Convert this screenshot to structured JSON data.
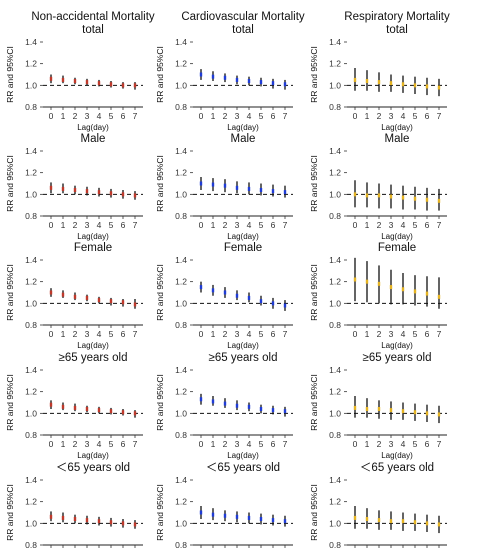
{
  "figure": {
    "ylabel": "RR and 95%CI",
    "xlabel": "Lag(day)",
    "ylim": [
      0.8,
      1.4
    ],
    "yticks": [
      "0.8",
      "1.0",
      "1.2",
      "1.4"
    ],
    "xticks": [
      "0",
      "1",
      "2",
      "3",
      "4",
      "5",
      "6",
      "7"
    ],
    "reference_value": 1.0
  },
  "chart_data": [
    {
      "type": "errorbar",
      "title": "Non-accidental Mortality\ntotal",
      "color": "#c0392b",
      "x": [
        0,
        1,
        2,
        3,
        4,
        5,
        6,
        7
      ],
      "rr": [
        1.06,
        1.05,
        1.04,
        1.03,
        1.02,
        1.01,
        1.0,
        1.0
      ],
      "lower": [
        1.02,
        1.02,
        1.01,
        1.0,
        0.99,
        0.98,
        0.97,
        0.96
      ],
      "upper": [
        1.1,
        1.09,
        1.07,
        1.06,
        1.05,
        1.04,
        1.03,
        1.03
      ]
    },
    {
      "type": "errorbar",
      "title": "Cardiovascular Mortality\ntotal",
      "color": "#1f3cd6",
      "x": [
        0,
        1,
        2,
        3,
        4,
        5,
        6,
        7
      ],
      "rr": [
        1.1,
        1.08,
        1.07,
        1.05,
        1.04,
        1.03,
        1.02,
        1.01
      ],
      "lower": [
        1.05,
        1.04,
        1.03,
        1.01,
        1.0,
        0.99,
        0.97,
        0.96
      ],
      "upper": [
        1.15,
        1.13,
        1.11,
        1.09,
        1.08,
        1.07,
        1.06,
        1.05
      ]
    },
    {
      "type": "errorbar",
      "title": "Respiratory Mortality\ntotal",
      "color": "#e6b422",
      "x": [
        0,
        1,
        2,
        3,
        4,
        5,
        6,
        7
      ],
      "rr": [
        1.05,
        1.04,
        1.03,
        1.02,
        1.01,
        1.0,
        0.99,
        0.98
      ],
      "lower": [
        0.95,
        0.95,
        0.94,
        0.94,
        0.93,
        0.92,
        0.91,
        0.9
      ],
      "upper": [
        1.16,
        1.14,
        1.12,
        1.1,
        1.09,
        1.08,
        1.07,
        1.06
      ]
    },
    {
      "type": "errorbar",
      "title": "Male",
      "color": "#c0392b",
      "x": [
        0,
        1,
        2,
        3,
        4,
        5,
        6,
        7
      ],
      "rr": [
        1.06,
        1.05,
        1.04,
        1.03,
        1.02,
        1.01,
        1.0,
        0.99
      ],
      "lower": [
        1.01,
        1.01,
        1.0,
        0.99,
        0.98,
        0.97,
        0.96,
        0.95
      ],
      "upper": [
        1.11,
        1.1,
        1.08,
        1.07,
        1.06,
        1.05,
        1.04,
        1.03
      ]
    },
    {
      "type": "errorbar",
      "title": "Male",
      "color": "#1f3cd6",
      "x": [
        0,
        1,
        2,
        3,
        4,
        5,
        6,
        7
      ],
      "rr": [
        1.1,
        1.09,
        1.08,
        1.06,
        1.05,
        1.04,
        1.03,
        1.02
      ],
      "lower": [
        1.04,
        1.03,
        1.02,
        1.01,
        1.0,
        0.99,
        0.98,
        0.97
      ],
      "upper": [
        1.16,
        1.15,
        1.14,
        1.12,
        1.11,
        1.1,
        1.09,
        1.08
      ]
    },
    {
      "type": "errorbar",
      "title": "Male",
      "color": "#e6b422",
      "x": [
        0,
        1,
        2,
        3,
        4,
        5,
        6,
        7
      ],
      "rr": [
        1.0,
        0.99,
        0.99,
        0.98,
        0.97,
        0.96,
        0.95,
        0.94
      ],
      "lower": [
        0.88,
        0.88,
        0.87,
        0.87,
        0.86,
        0.86,
        0.85,
        0.85
      ],
      "upper": [
        1.13,
        1.11,
        1.1,
        1.09,
        1.08,
        1.07,
        1.06,
        1.05
      ]
    },
    {
      "type": "errorbar",
      "title": "Female",
      "color": "#c0392b",
      "x": [
        0,
        1,
        2,
        3,
        4,
        5,
        6,
        7
      ],
      "rr": [
        1.1,
        1.08,
        1.06,
        1.05,
        1.03,
        1.02,
        1.01,
        0.99
      ],
      "lower": [
        1.06,
        1.05,
        1.03,
        1.02,
        1.0,
        0.98,
        0.97,
        0.95
      ],
      "upper": [
        1.14,
        1.12,
        1.1,
        1.08,
        1.06,
        1.05,
        1.04,
        1.04
      ]
    },
    {
      "type": "errorbar",
      "title": "Female",
      "color": "#1f3cd6",
      "x": [
        0,
        1,
        2,
        3,
        4,
        5,
        6,
        7
      ],
      "rr": [
        1.15,
        1.12,
        1.1,
        1.07,
        1.05,
        1.02,
        1.0,
        0.98
      ],
      "lower": [
        1.1,
        1.07,
        1.05,
        1.03,
        1.01,
        0.98,
        0.95,
        0.93
      ],
      "upper": [
        1.2,
        1.17,
        1.15,
        1.12,
        1.1,
        1.07,
        1.05,
        1.03
      ]
    },
    {
      "type": "errorbar",
      "title": "Female",
      "color": "#e6b422",
      "x": [
        0,
        1,
        2,
        3,
        4,
        5,
        6,
        7
      ],
      "rr": [
        1.22,
        1.2,
        1.18,
        1.15,
        1.13,
        1.11,
        1.09,
        1.06
      ],
      "lower": [
        1.02,
        1.01,
        1.0,
        0.99,
        0.99,
        0.98,
        0.97,
        0.95
      ],
      "upper": [
        1.42,
        1.39,
        1.35,
        1.31,
        1.28,
        1.26,
        1.25,
        1.24
      ]
    },
    {
      "type": "errorbar",
      "title": "≥65 years old",
      "color": "#c0392b",
      "x": [
        0,
        1,
        2,
        3,
        4,
        5,
        6,
        7
      ],
      "rr": [
        1.08,
        1.06,
        1.05,
        1.04,
        1.03,
        1.02,
        1.01,
        1.0
      ],
      "lower": [
        1.04,
        1.03,
        1.02,
        1.01,
        1.0,
        0.99,
        0.98,
        0.96
      ],
      "upper": [
        1.12,
        1.1,
        1.09,
        1.07,
        1.06,
        1.05,
        1.04,
        1.03
      ]
    },
    {
      "type": "errorbar",
      "title": "≥65 years old",
      "color": "#1f3cd6",
      "x": [
        0,
        1,
        2,
        3,
        4,
        5,
        6,
        7
      ],
      "rr": [
        1.13,
        1.11,
        1.09,
        1.07,
        1.06,
        1.04,
        1.03,
        1.02
      ],
      "lower": [
        1.08,
        1.07,
        1.05,
        1.03,
        1.02,
        1.0,
        0.99,
        0.97
      ],
      "upper": [
        1.18,
        1.16,
        1.14,
        1.12,
        1.1,
        1.08,
        1.07,
        1.06
      ]
    },
    {
      "type": "errorbar",
      "title": "≥65 years old",
      "color": "#e6b422",
      "x": [
        0,
        1,
        2,
        3,
        4,
        5,
        6,
        7
      ],
      "rr": [
        1.05,
        1.04,
        1.04,
        1.03,
        1.02,
        1.01,
        1.0,
        0.99
      ],
      "lower": [
        0.96,
        0.96,
        0.95,
        0.94,
        0.94,
        0.93,
        0.92,
        0.91
      ],
      "upper": [
        1.16,
        1.14,
        1.12,
        1.11,
        1.1,
        1.09,
        1.08,
        1.07
      ]
    },
    {
      "type": "errorbar",
      "title": "＜65 years old",
      "color": "#c0392b",
      "x": [
        0,
        1,
        2,
        3,
        4,
        5,
        6,
        7
      ],
      "rr": [
        1.06,
        1.05,
        1.04,
        1.03,
        1.02,
        1.01,
        1.0,
        0.99
      ],
      "lower": [
        1.02,
        1.01,
        1.0,
        0.99,
        0.98,
        0.97,
        0.96,
        0.95
      ],
      "upper": [
        1.11,
        1.1,
        1.08,
        1.07,
        1.06,
        1.05,
        1.04,
        1.03
      ]
    },
    {
      "type": "errorbar",
      "title": "＜65 years old",
      "color": "#1f3cd6",
      "x": [
        0,
        1,
        2,
        3,
        4,
        5,
        6,
        7
      ],
      "rr": [
        1.1,
        1.08,
        1.07,
        1.06,
        1.05,
        1.04,
        1.03,
        1.02
      ],
      "lower": [
        1.04,
        1.03,
        1.02,
        1.01,
        1.0,
        0.99,
        0.98,
        0.97
      ],
      "upper": [
        1.16,
        1.14,
        1.12,
        1.11,
        1.1,
        1.09,
        1.08,
        1.07
      ]
    },
    {
      "type": "errorbar",
      "title": "＜65 years old",
      "color": "#e6b422",
      "x": [
        0,
        1,
        2,
        3,
        4,
        5,
        6,
        7
      ],
      "rr": [
        1.05,
        1.04,
        1.03,
        1.02,
        1.02,
        1.01,
        1.0,
        0.99
      ],
      "lower": [
        0.95,
        0.95,
        0.94,
        0.94,
        0.93,
        0.93,
        0.92,
        0.91
      ],
      "upper": [
        1.16,
        1.14,
        1.12,
        1.11,
        1.1,
        1.09,
        1.08,
        1.07
      ]
    }
  ]
}
